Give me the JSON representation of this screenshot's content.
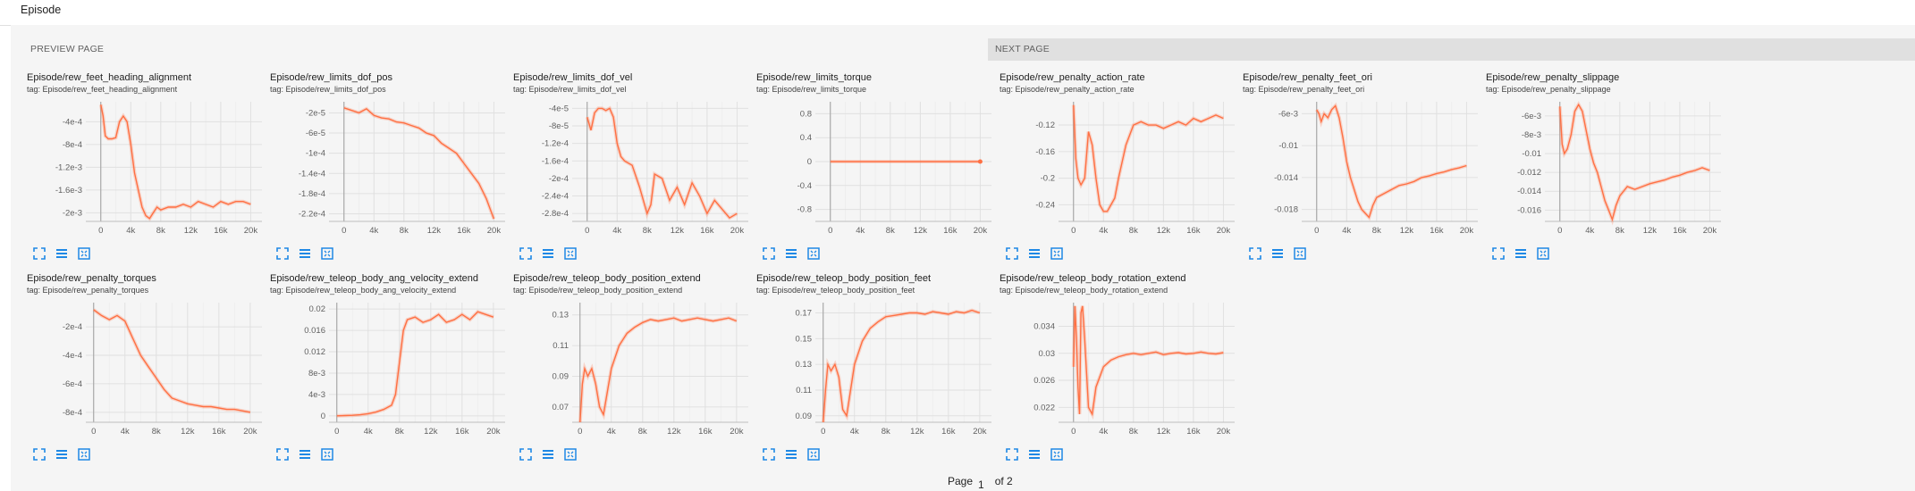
{
  "header": {
    "title": "Episode"
  },
  "pager": {
    "prev_label": "PREVIEW PAGE",
    "next_label": "NEXT PAGE"
  },
  "footer": {
    "page_prefix": "Page",
    "page_number": "1",
    "page_suffix": "of 2"
  },
  "colors": {
    "accent": "#ff7043",
    "tool_blue": "#1e88e5",
    "grid": "#e0e0e0",
    "next_bg": "#e0e0e0"
  },
  "tool_icons": [
    "fullscreen-icon",
    "toggle-log-scale-icon",
    "fit-domain-icon"
  ],
  "x_ticks": [
    "0",
    "4k",
    "8k",
    "12k",
    "16k",
    "20k"
  ],
  "chart_data": [
    {
      "type": "line",
      "title": "Episode/rew_feet_heading_alignment",
      "tag": "tag: Episode/rew_feet_heading_alignment",
      "yticks": [
        "-4e-4",
        "-8e-4",
        "-1.2e-3",
        "-1.6e-3",
        "-2e-3"
      ],
      "ytv": [
        -0.0004,
        -0.0008,
        -0.0012,
        -0.0016,
        -0.002
      ],
      "ylim": [
        -0.00215,
        -5e-05
      ],
      "xlim": [
        -2000,
        21500
      ],
      "x": [
        0,
        300,
        600,
        1000,
        1500,
        2000,
        2500,
        3000,
        3500,
        4000,
        4500,
        5000,
        5500,
        6000,
        6500,
        7000,
        7500,
        8000,
        9000,
        10000,
        11000,
        12000,
        13000,
        14000,
        15000,
        16000,
        17000,
        18000,
        19000,
        20000
      ],
      "y": [
        -0.0001,
        -0.0003,
        -0.00065,
        -0.0007,
        -0.0007,
        -0.00068,
        -0.0004,
        -0.0003,
        -0.0004,
        -0.0008,
        -0.0013,
        -0.0016,
        -0.0019,
        -0.00205,
        -0.0021,
        -0.002,
        -0.0019,
        -0.00195,
        -0.0019,
        -0.0019,
        -0.00185,
        -0.0019,
        -0.0018,
        -0.00185,
        -0.0019,
        -0.0018,
        -0.00185,
        -0.0018,
        -0.0018,
        -0.00185
      ]
    },
    {
      "type": "line",
      "title": "Episode/rew_limits_dof_pos",
      "tag": "tag: Episode/rew_limits_dof_pos",
      "yticks": [
        "-2e-5",
        "-6e-5",
        "-1e-4",
        "-1.4e-4",
        "-1.8e-4",
        "-2.2e-4"
      ],
      "ytv": [
        -2e-05,
        -6e-05,
        -0.0001,
        -0.00014,
        -0.00018,
        -0.00022
      ],
      "ylim": [
        -0.000235,
        2e-06
      ],
      "xlim": [
        -2000,
        21500
      ],
      "x": [
        0,
        1000,
        2000,
        3000,
        4000,
        5000,
        6000,
        7000,
        8000,
        9000,
        10000,
        11000,
        12000,
        13000,
        14000,
        15000,
        16000,
        17000,
        18000,
        19000,
        20000
      ],
      "y": [
        -1e-05,
        -1.5e-05,
        -2e-05,
        -1.2e-05,
        -2.5e-05,
        -3e-05,
        -3.2e-05,
        -3.8e-05,
        -4e-05,
        -4.5e-05,
        -5e-05,
        -6e-05,
        -6.5e-05,
        -8e-05,
        -9e-05,
        -0.0001,
        -0.00012,
        -0.00014,
        -0.00016,
        -0.00019,
        -0.00023
      ]
    },
    {
      "type": "line",
      "title": "Episode/rew_limits_dof_vel",
      "tag": "tag: Episode/rew_limits_dof_vel",
      "yticks": [
        "-4e-5",
        "-8e-5",
        "-1.2e-4",
        "-1.6e-4",
        "-2e-4",
        "-2.4e-4",
        "-2.8e-4"
      ],
      "ytv": [
        -4e-05,
        -8e-05,
        -0.00012,
        -0.00016,
        -0.0002,
        -0.00024,
        -0.00028
      ],
      "ylim": [
        -0.000298,
        -2.5e-05
      ],
      "xlim": [
        -2000,
        21500
      ],
      "x": [
        0,
        500,
        1000,
        1500,
        2000,
        2500,
        3000,
        3500,
        4000,
        4500,
        5000,
        6000,
        7000,
        8000,
        8500,
        9000,
        10000,
        11000,
        12000,
        13000,
        14000,
        15000,
        16000,
        17000,
        18000,
        19000,
        20000
      ],
      "y": [
        -6e-05,
        -9e-05,
        -5e-05,
        -4e-05,
        -4e-05,
        -4.5e-05,
        -4e-05,
        -6e-05,
        -0.00012,
        -0.00015,
        -0.00016,
        -0.00017,
        -0.00022,
        -0.00028,
        -0.00026,
        -0.00019,
        -0.0002,
        -0.00025,
        -0.00022,
        -0.00026,
        -0.00021,
        -0.00024,
        -0.00028,
        -0.00025,
        -0.00027,
        -0.00029,
        -0.00028
      ]
    },
    {
      "type": "line",
      "title": "Episode/rew_limits_torque",
      "tag": "tag: Episode/rew_limits_torque",
      "yticks": [
        "0.8",
        "0.4",
        "0",
        "-0.4",
        "-0.8"
      ],
      "ytv": [
        0.8,
        0.4,
        0,
        -0.4,
        -0.8
      ],
      "ylim": [
        -1,
        1
      ],
      "xlim": [
        -2000,
        21500
      ],
      "x": [
        0,
        20000
      ],
      "y": [
        0,
        0
      ]
    },
    {
      "type": "line",
      "title": "Episode/rew_penalty_action_rate",
      "tag": "tag: Episode/rew_penalty_action_rate",
      "yticks": [
        "-0.12",
        "-0.16",
        "-0.2",
        "-0.24"
      ],
      "ytv": [
        -0.12,
        -0.16,
        -0.2,
        -0.24
      ],
      "ylim": [
        -0.265,
        -0.085
      ],
      "xlim": [
        -2000,
        21500
      ],
      "x": [
        0,
        300,
        600,
        1000,
        1500,
        2000,
        2500,
        3000,
        3500,
        4000,
        4500,
        5000,
        5500,
        6000,
        7000,
        8000,
        9000,
        10000,
        11000,
        12000,
        13000,
        14000,
        15000,
        16000,
        17000,
        18000,
        19000,
        20000
      ],
      "y": [
        -0.09,
        -0.17,
        -0.2,
        -0.21,
        -0.2,
        -0.13,
        -0.15,
        -0.2,
        -0.24,
        -0.25,
        -0.25,
        -0.24,
        -0.23,
        -0.2,
        -0.15,
        -0.12,
        -0.115,
        -0.12,
        -0.12,
        -0.125,
        -0.12,
        -0.115,
        -0.12,
        -0.11,
        -0.115,
        -0.11,
        -0.105,
        -0.11
      ]
    },
    {
      "type": "line",
      "title": "Episode/rew_penalty_feet_ori",
      "tag": "tag: Episode/rew_penalty_feet_ori",
      "yticks": [
        "-6e-3",
        "-0.01",
        "-0.014",
        "-0.018"
      ],
      "ytv": [
        -0.006,
        -0.01,
        -0.014,
        -0.018
      ],
      "ylim": [
        -0.0195,
        -0.0045
      ],
      "xlim": [
        -2000,
        21500
      ],
      "x": [
        0,
        300,
        600,
        1000,
        1500,
        2000,
        2500,
        3000,
        3500,
        4000,
        4500,
        5000,
        5500,
        6000,
        6500,
        7000,
        7500,
        8000,
        9000,
        10000,
        11000,
        12000,
        13000,
        14000,
        15000,
        16000,
        17000,
        18000,
        19000,
        20000
      ],
      "y": [
        -0.0055,
        -0.006,
        -0.007,
        -0.006,
        -0.0065,
        -0.0055,
        -0.005,
        -0.0065,
        -0.009,
        -0.012,
        -0.014,
        -0.0155,
        -0.017,
        -0.018,
        -0.0185,
        -0.019,
        -0.0175,
        -0.0165,
        -0.016,
        -0.0155,
        -0.015,
        -0.0148,
        -0.0145,
        -0.014,
        -0.0138,
        -0.0135,
        -0.0133,
        -0.013,
        -0.0128,
        -0.0125
      ]
    },
    {
      "type": "line",
      "title": "Episode/rew_penalty_slippage",
      "tag": "tag: Episode/rew_penalty_slippage",
      "yticks": [
        "-6e-3",
        "-8e-3",
        "-0.01",
        "-0.012",
        "-0.014",
        "-0.016"
      ],
      "ytv": [
        -0.006,
        -0.008,
        -0.01,
        -0.012,
        -0.014,
        -0.016
      ],
      "ylim": [
        -0.0172,
        -0.0045
      ],
      "xlim": [
        -2000,
        21500
      ],
      "x": [
        0,
        300,
        600,
        1000,
        1500,
        2000,
        2500,
        3000,
        3500,
        4000,
        4500,
        5000,
        5500,
        6000,
        6500,
        7000,
        7500,
        8000,
        9000,
        10000,
        11000,
        12000,
        13000,
        14000,
        15000,
        16000,
        17000,
        18000,
        19000,
        20000
      ],
      "y": [
        -0.005,
        -0.009,
        -0.01,
        -0.0095,
        -0.008,
        -0.0055,
        -0.0048,
        -0.0055,
        -0.0075,
        -0.0095,
        -0.011,
        -0.012,
        -0.0135,
        -0.015,
        -0.016,
        -0.017,
        -0.0155,
        -0.0145,
        -0.0135,
        -0.0138,
        -0.0135,
        -0.0132,
        -0.013,
        -0.0128,
        -0.0125,
        -0.0123,
        -0.012,
        -0.0118,
        -0.0115,
        -0.0118
      ]
    },
    {
      "type": "line",
      "title": "Episode/rew_penalty_torques",
      "tag": "tag: Episode/rew_penalty_torques",
      "yticks": [
        "-2e-4",
        "-4e-4",
        "-6e-4",
        "-8e-4"
      ],
      "ytv": [
        -0.0002,
        -0.0004,
        -0.0006,
        -0.0008
      ],
      "ylim": [
        -0.00087,
        -3e-05
      ],
      "xlim": [
        -1000,
        21500
      ],
      "x": [
        0,
        1000,
        2000,
        3000,
        4000,
        5000,
        6000,
        7000,
        8000,
        9000,
        10000,
        11000,
        12000,
        13000,
        14000,
        15000,
        16000,
        17000,
        18000,
        19000,
        20000
      ],
      "y": [
        -8e-05,
        -0.00012,
        -0.00015,
        -0.00012,
        -0.00016,
        -0.00028,
        -0.0004,
        -0.00048,
        -0.00056,
        -0.00064,
        -0.0007,
        -0.00072,
        -0.00074,
        -0.00075,
        -0.00076,
        -0.00076,
        -0.00077,
        -0.00078,
        -0.00078,
        -0.00079,
        -0.0008
      ]
    },
    {
      "type": "line",
      "title": "Episode/rew_teleop_body_ang_velocity_extend",
      "tag": "tag: Episode/rew_teleop_body_ang_velocity_extend",
      "yticks": [
        "0.02",
        "0.016",
        "0.012",
        "8e-3",
        "4e-3",
        "0"
      ],
      "ytv": [
        0.02,
        0.016,
        0.012,
        0.008,
        0.004,
        0
      ],
      "ylim": [
        -0.0012,
        0.0212
      ],
      "xlim": [
        -1000,
        21500
      ],
      "x": [
        0,
        1000,
        2000,
        3000,
        4000,
        5000,
        6000,
        7000,
        7500,
        8000,
        8500,
        9000,
        10000,
        11000,
        12000,
        13000,
        14000,
        15000,
        16000,
        17000,
        18000,
        19000,
        20000
      ],
      "y": [
        0,
        5e-05,
        0.0001,
        0.0002,
        0.0004,
        0.0007,
        0.0012,
        0.002,
        0.004,
        0.01,
        0.016,
        0.018,
        0.0185,
        0.0175,
        0.018,
        0.019,
        0.0175,
        0.018,
        0.019,
        0.018,
        0.0195,
        0.019,
        0.0185
      ]
    },
    {
      "type": "line",
      "title": "Episode/rew_teleop_body_position_extend",
      "tag": "tag: Episode/rew_teleop_body_position_extend",
      "yticks": [
        "0.13",
        "0.11",
        "0.09",
        "0.07"
      ],
      "ytv": [
        0.13,
        0.11,
        0.09,
        0.07
      ],
      "ylim": [
        0.06,
        0.138
      ],
      "xlim": [
        -1000,
        21500
      ],
      "x": [
        0,
        300,
        600,
        1000,
        1500,
        2000,
        2500,
        3000,
        3500,
        4000,
        5000,
        6000,
        7000,
        8000,
        9000,
        10000,
        11000,
        12000,
        13000,
        14000,
        15000,
        16000,
        17000,
        18000,
        19000,
        20000
      ],
      "y": [
        0.06,
        0.085,
        0.095,
        0.09,
        0.095,
        0.085,
        0.07,
        0.065,
        0.08,
        0.095,
        0.11,
        0.118,
        0.122,
        0.125,
        0.127,
        0.126,
        0.127,
        0.128,
        0.126,
        0.127,
        0.128,
        0.127,
        0.126,
        0.127,
        0.128,
        0.126
      ]
    },
    {
      "type": "line",
      "title": "Episode/rew_teleop_body_position_feet",
      "tag": "tag: Episode/rew_teleop_body_position_feet",
      "yticks": [
        "0.17",
        "0.15",
        "0.13",
        "0.11",
        "0.09"
      ],
      "ytv": [
        0.17,
        0.15,
        0.13,
        0.11,
        0.09
      ],
      "ylim": [
        0.085,
        0.178
      ],
      "xlim": [
        -1000,
        21500
      ],
      "x": [
        0,
        300,
        600,
        1000,
        1500,
        2000,
        2500,
        3000,
        3500,
        4000,
        5000,
        6000,
        7000,
        8000,
        9000,
        10000,
        11000,
        12000,
        13000,
        14000,
        15000,
        16000,
        17000,
        18000,
        19000,
        20000
      ],
      "y": [
        0.085,
        0.11,
        0.13,
        0.125,
        0.13,
        0.12,
        0.095,
        0.09,
        0.11,
        0.13,
        0.148,
        0.158,
        0.163,
        0.167,
        0.168,
        0.169,
        0.17,
        0.17,
        0.169,
        0.171,
        0.17,
        0.169,
        0.171,
        0.17,
        0.172,
        0.17
      ]
    },
    {
      "type": "line",
      "title": "Episode/rew_teleop_body_rotation_extend",
      "tag": "tag: Episode/rew_teleop_body_rotation_extend",
      "yticks": [
        "0.034",
        "0.03",
        "0.026",
        "0.022"
      ],
      "ytv": [
        0.034,
        0.03,
        0.026,
        0.022
      ],
      "ylim": [
        0.0198,
        0.0375
      ],
      "xlim": [
        -2000,
        21500
      ],
      "x": [
        0,
        200,
        400,
        600,
        800,
        1000,
        1200,
        1500,
        2000,
        2500,
        3000,
        4000,
        5000,
        6000,
        7000,
        8000,
        9000,
        10000,
        11000,
        12000,
        13000,
        14000,
        15000,
        16000,
        17000,
        18000,
        19000,
        20000
      ],
      "y": [
        0.028,
        0.037,
        0.032,
        0.025,
        0.021,
        0.036,
        0.037,
        0.032,
        0.022,
        0.021,
        0.025,
        0.028,
        0.029,
        0.0295,
        0.0298,
        0.03,
        0.0298,
        0.03,
        0.0302,
        0.0298,
        0.03,
        0.0301,
        0.0299,
        0.03,
        0.0302,
        0.03,
        0.0299,
        0.0301
      ]
    }
  ]
}
